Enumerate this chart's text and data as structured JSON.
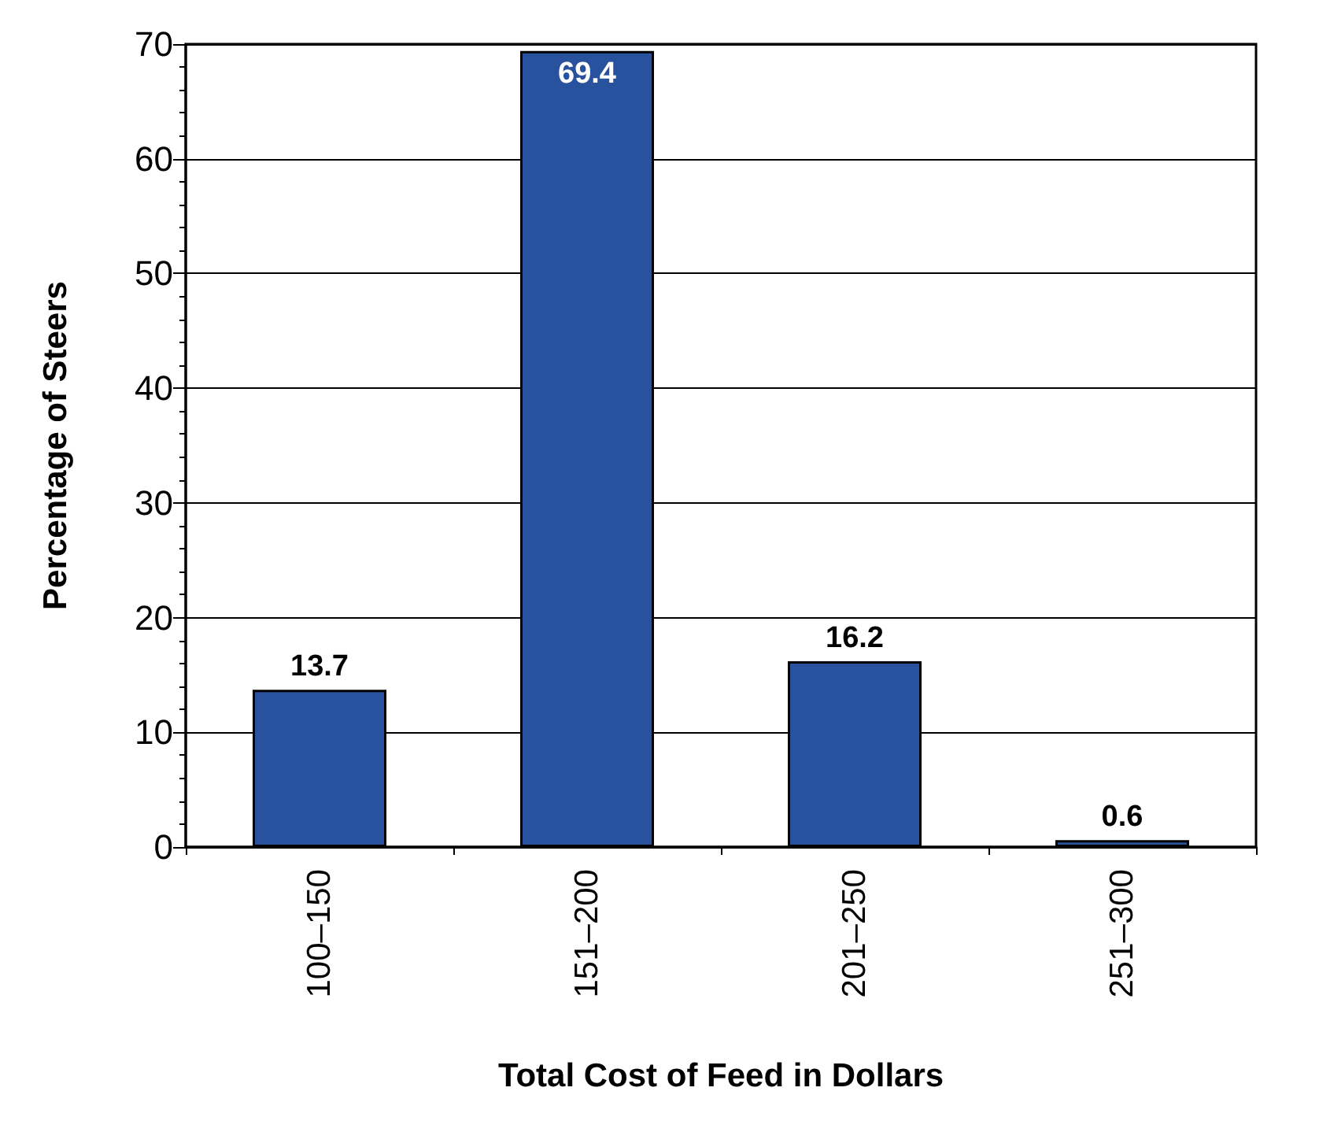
{
  "chart_data": {
    "type": "bar",
    "xlabel": "Total Cost of Feed in Dollars",
    "ylabel": "Percentage of Steers",
    "categories": [
      "100–150",
      "151–200",
      "201–250",
      "251–300"
    ],
    "values": [
      13.7,
      69.4,
      16.2,
      0.6
    ],
    "color": "#28519e",
    "ylim": [
      0,
      70
    ],
    "yticks": [
      0,
      10,
      20,
      30,
      40,
      50,
      60,
      70
    ],
    "grid": "y",
    "data_labels": true
  }
}
